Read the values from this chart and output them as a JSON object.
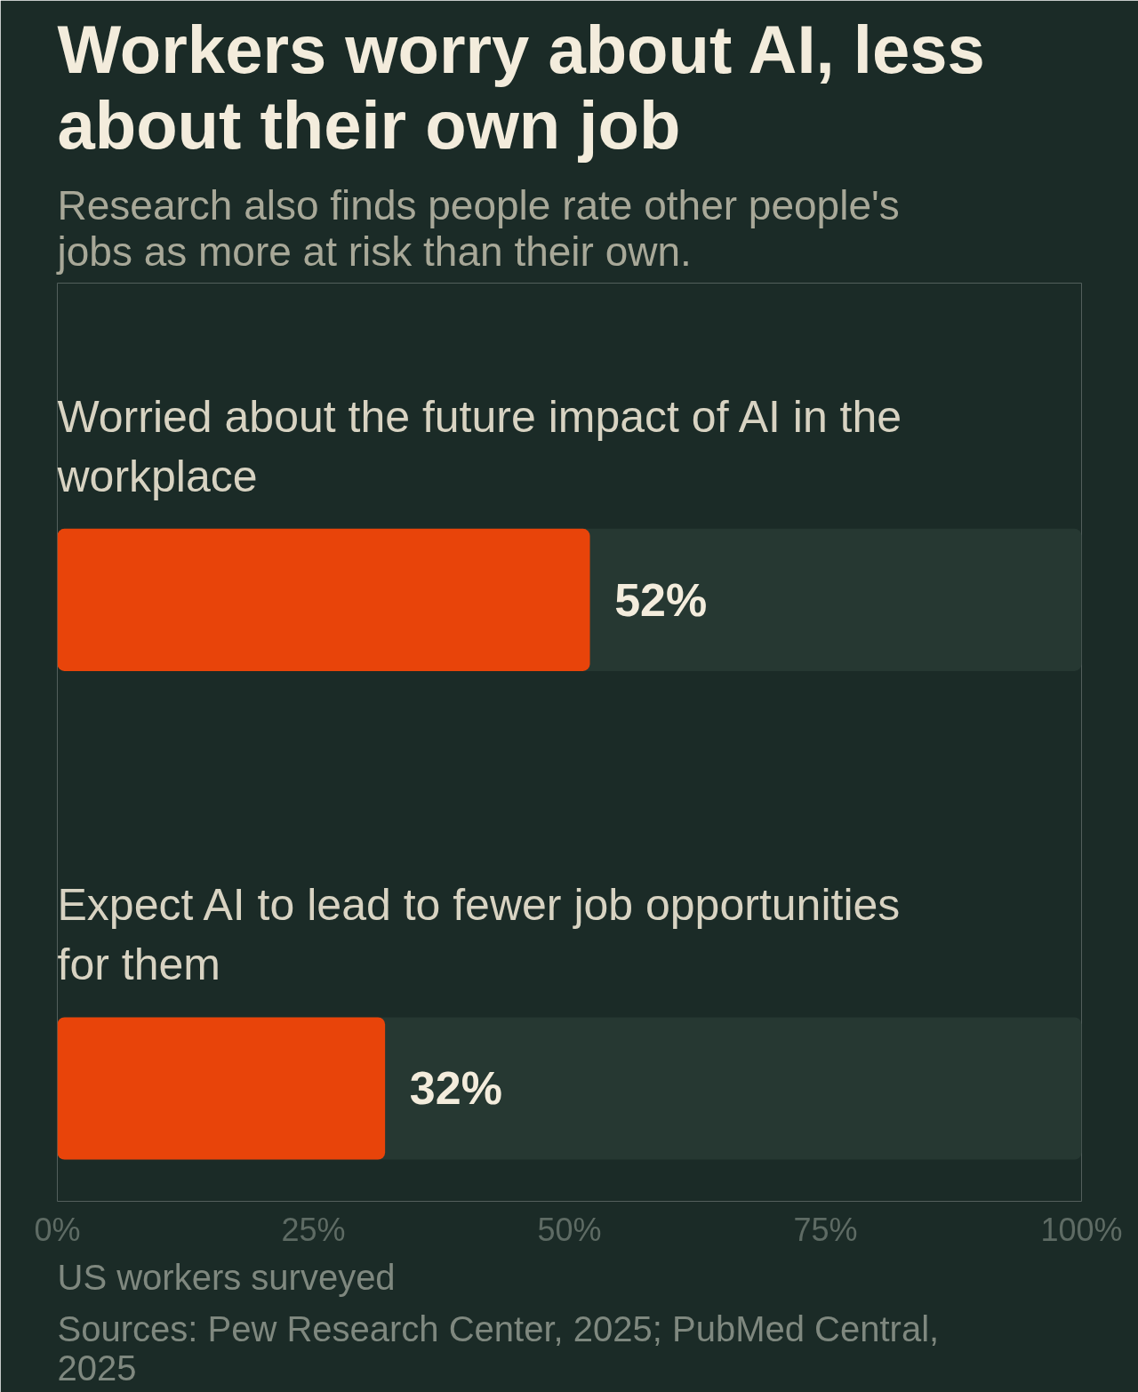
{
  "chart_data": {
    "type": "bar",
    "orientation": "horizontal",
    "title": "Workers worry about AI, less about their own job",
    "subtitle": "Research also finds people rate other people's jobs as more at risk than their own.",
    "categories": [
      "Worried about the future impact of AI in the workplace",
      "Expect AI to lead to fewer job opportunities for them"
    ],
    "values": [
      52,
      32
    ],
    "value_labels": [
      "52%",
      "32%"
    ],
    "color": "#e8440a",
    "xlim": [
      0,
      100
    ],
    "xticks": [
      {
        "value": 0,
        "label": "0%"
      },
      {
        "value": 25,
        "label": "25%"
      },
      {
        "value": 50,
        "label": "50%"
      },
      {
        "value": 75,
        "label": "75%"
      },
      {
        "value": 100,
        "label": "100%"
      }
    ],
    "grid": false,
    "annotations": [
      "US workers surveyed",
      "Sources: Pew Research Center, 2025; PubMed Central, 2025"
    ]
  }
}
